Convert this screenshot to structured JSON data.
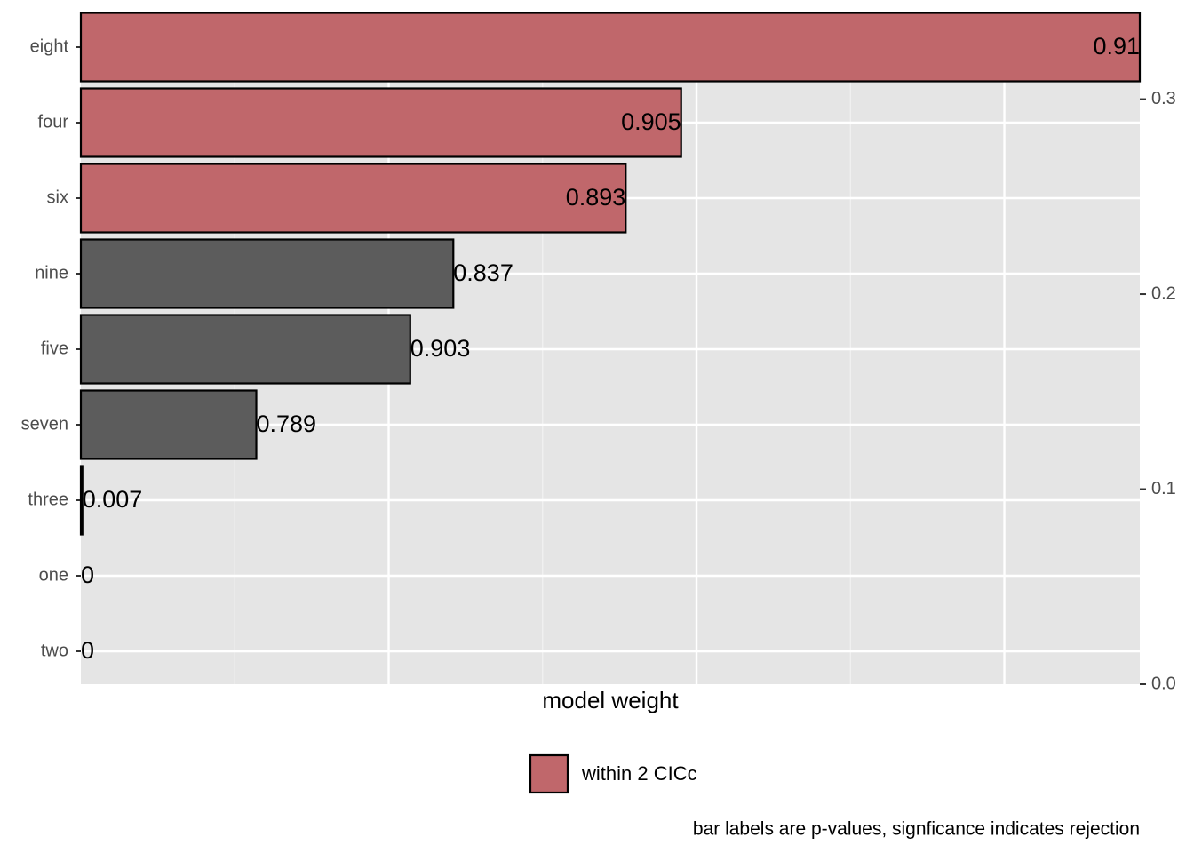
{
  "chart_data": {
    "type": "bar",
    "orientation": "horizontal",
    "categories": [
      "eight",
      "four",
      "six",
      "nine",
      "five",
      "seven",
      "three",
      "one",
      "two"
    ],
    "values": [
      0.344,
      0.195,
      0.177,
      0.121,
      0.107,
      0.057,
      0.0005,
      0,
      0
    ],
    "bar_labels": [
      0.91,
      0.905,
      0.893,
      0.837,
      0.903,
      0.789,
      0.007,
      0,
      0
    ],
    "within": [
      true,
      true,
      true,
      false,
      false,
      false,
      false,
      false,
      false
    ],
    "highlight_color": "#c0676b",
    "base_color": "#5c5c5c",
    "legend_label": "within 2 CICc",
    "xlabel": "model weight",
    "xlim": [
      0,
      0.344
    ],
    "xticks": [
      0.1,
      0.2,
      0.3
    ],
    "xminorticks": [
      0.05,
      0.15,
      0.25
    ],
    "y2lim": [
      0,
      0.344
    ],
    "y2ticks": [
      {
        "value": 0,
        "label": "0.0"
      },
      {
        "value": 0.1,
        "label": "0.1"
      },
      0.2,
      {
        "value": 0.3,
        "label": "0.3"
      }
    ],
    "grid": true,
    "caption": "bar labels are p-values, signficance indicates rejection"
  }
}
